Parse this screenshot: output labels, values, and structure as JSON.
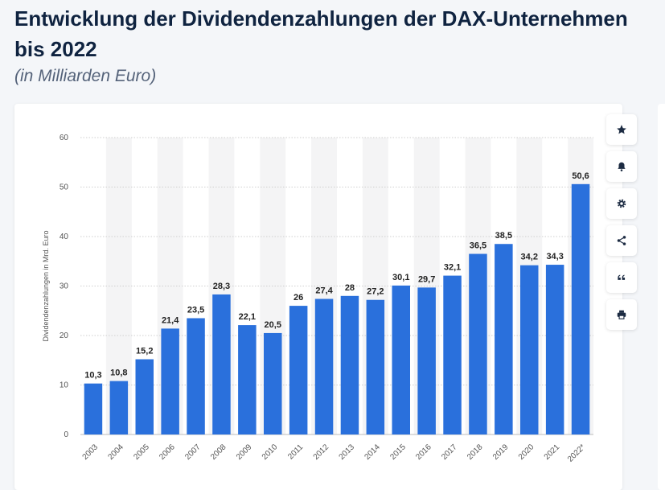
{
  "page": {
    "title": "Entwicklung der Dividendenzahlungen der DAX-Unternehmen bis 2022",
    "subtitle": "(in Milliarden Euro)"
  },
  "toolbar": {
    "items": [
      {
        "icon": "star-icon"
      },
      {
        "icon": "bell-icon"
      },
      {
        "icon": "gear-icon"
      },
      {
        "icon": "share-icon"
      },
      {
        "icon": "quote-icon"
      },
      {
        "icon": "print-icon"
      }
    ]
  },
  "colors": {
    "bar": "#2a70dc",
    "stripe": "#f4f4f5",
    "grid": "#cfcfcf",
    "title": "#0f2340"
  },
  "chart_data": {
    "type": "bar",
    "categories": [
      "2003",
      "2004",
      "2005",
      "2006",
      "2007",
      "2008",
      "2009",
      "2010",
      "2011",
      "2012",
      "2013",
      "2014",
      "2015",
      "2016",
      "2017",
      "2018",
      "2019",
      "2020",
      "2021",
      "2022*"
    ],
    "values": [
      10.3,
      10.8,
      15.2,
      21.4,
      23.5,
      28.3,
      22.1,
      20.5,
      26,
      27.4,
      28,
      27.2,
      30.1,
      29.7,
      32.1,
      36.5,
      38.5,
      34.2,
      34.3,
      50.6
    ],
    "value_labels": [
      "10,3",
      "10,8",
      "15,2",
      "21,4",
      "23,5",
      "28,3",
      "22,1",
      "20,5",
      "26",
      "27,4",
      "28",
      "27,2",
      "30,1",
      "29,7",
      "32,1",
      "36,5",
      "38,5",
      "34,2",
      "34,3",
      "50,6"
    ],
    "ylabel": "Dividendenzahlungen in Mrd. Euro",
    "xlabel": "",
    "ylim": [
      0,
      60
    ],
    "yticks": [
      "0",
      "10",
      "20",
      "30",
      "40",
      "50",
      "60"
    ],
    "grid": true,
    "alternating_column_stripes": true
  }
}
